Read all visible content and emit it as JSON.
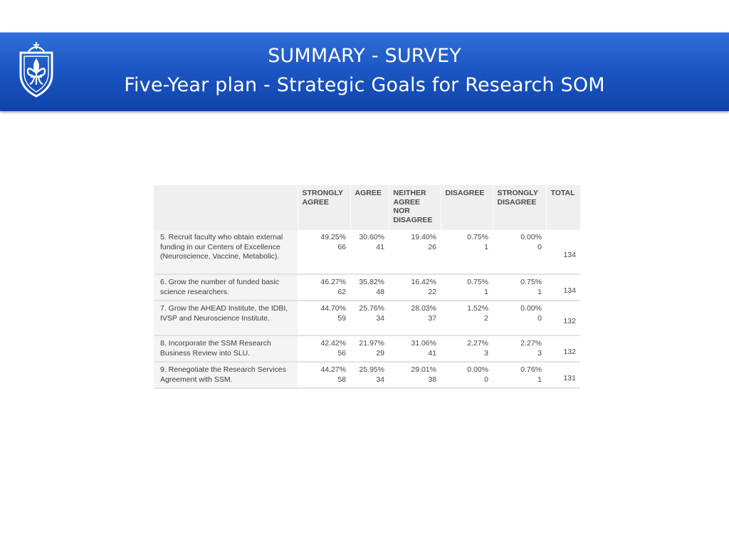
{
  "header": {
    "title_line1": "SUMMARY - SURVEY",
    "title_line2": "Five-Year plan - Strategic Goals for Research SOM",
    "logo_icon": "fleur-de-lis-shield-icon",
    "colors": {
      "banner": "#1d57c4",
      "banner_dark": "#0f44aa",
      "text": "#ffffff"
    }
  },
  "table": {
    "columns": [
      "",
      "STRONGLY AGREE",
      "AGREE",
      "NEITHER AGREE NOR DISAGREE",
      "DISAGREE",
      "STRONGLY DISAGREE",
      "TOTAL"
    ],
    "rows": [
      {
        "question": "5. Recruit faculty who obtain external funding in our Centers of Excellence (Neuroscience, Vaccine, Metabolic).",
        "strongly_agree": {
          "pct": "49.25%",
          "n": "66"
        },
        "agree": {
          "pct": "30.60%",
          "n": "41"
        },
        "neither": {
          "pct": "19.40%",
          "n": "26"
        },
        "disagree": {
          "pct": "0.75%",
          "n": "1"
        },
        "strongly_disagree": {
          "pct": "0.00%",
          "n": "0"
        },
        "total": "134"
      },
      {
        "question": "6. Grow the number of funded basic science researchers.",
        "strongly_agree": {
          "pct": "46.27%",
          "n": "62"
        },
        "agree": {
          "pct": "35.82%",
          "n": "48"
        },
        "neither": {
          "pct": "16.42%",
          "n": "22"
        },
        "disagree": {
          "pct": "0.75%",
          "n": "1"
        },
        "strongly_disagree": {
          "pct": "0.75%",
          "n": "1"
        },
        "total": "134"
      },
      {
        "question": "7. Grow the AHEAD Institute, the IDBI, IVSP and Neuroscience Institute.",
        "strongly_agree": {
          "pct": "44.70%",
          "n": "59"
        },
        "agree": {
          "pct": "25.76%",
          "n": "34"
        },
        "neither": {
          "pct": "28.03%",
          "n": "37"
        },
        "disagree": {
          "pct": "1.52%",
          "n": "2"
        },
        "strongly_disagree": {
          "pct": "0.00%",
          "n": "0"
        },
        "total": "132"
      },
      {
        "question": "8. Incorporate the SSM Research Business Review into SLU.",
        "strongly_agree": {
          "pct": "42.42%",
          "n": "56"
        },
        "agree": {
          "pct": "21.97%",
          "n": "29"
        },
        "neither": {
          "pct": "31.06%",
          "n": "41"
        },
        "disagree": {
          "pct": "2.27%",
          "n": "3"
        },
        "strongly_disagree": {
          "pct": "2.27%",
          "n": "3"
        },
        "total": "132"
      },
      {
        "question": "9. Renegotiate the Research Services Agreement with SSM.",
        "strongly_agree": {
          "pct": "44.27%",
          "n": "58"
        },
        "agree": {
          "pct": "25.95%",
          "n": "34"
        },
        "neither": {
          "pct": "29.01%",
          "n": "38"
        },
        "disagree": {
          "pct": "0.00%",
          "n": "0"
        },
        "strongly_disagree": {
          "pct": "0.76%",
          "n": "1"
        },
        "total": "131"
      }
    ]
  }
}
